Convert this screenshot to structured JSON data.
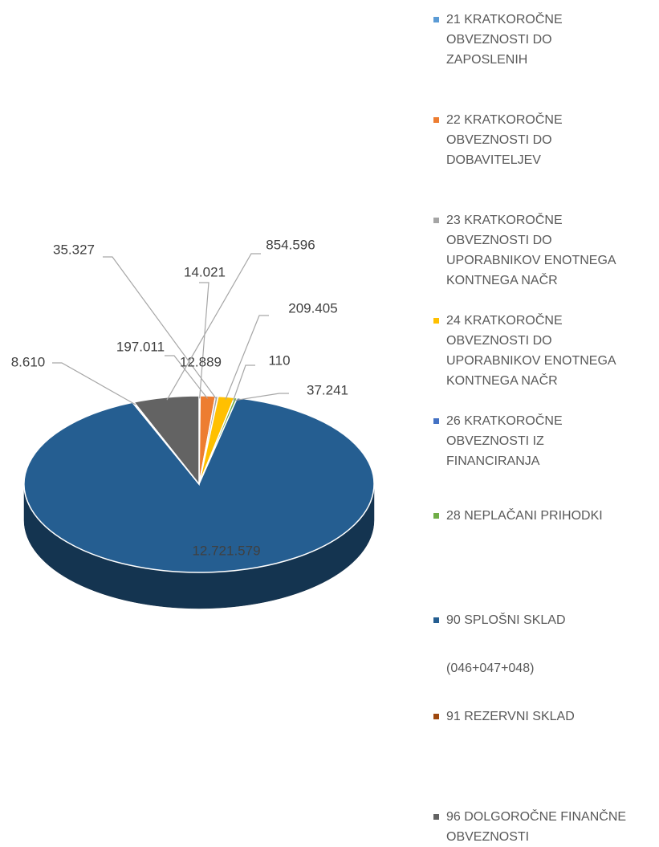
{
  "chart_data": {
    "type": "pie",
    "three_d": true,
    "categories": [
      "21 KRATKOROČNE OBVEZNOSTI DO ZAPOSLENIH",
      "22 KRATKOROČNE OBVEZNOSTI DO DOBAVITELJEV",
      "23 KRATKOROČNE OBVEZNOSTI DO UPORABNIKOV ENOTNEGA KONTNEGA NAČR",
      "24 KRATKOROČNE OBVEZNOSTI DO UPORABNIKOV ENOTNEGA KONTNEGA NAČR",
      "26 KRATKOROČNE OBVEZNOSTI IZ FINANCIRANJA",
      "28 NEPLAČANI PRIHODKI",
      "90 SPLOŠNI SKLAD",
      "(046+047+048)",
      "91 REZERVNI SKLAD",
      "96 DOLGOROČNE FINANČNE OBVEZNOSTI"
    ],
    "values": [
      14021,
      197011,
      35327,
      209405,
      110,
      37241,
      12721579,
      12889,
      8610,
      854596
    ],
    "value_labels": [
      "14.021",
      "197.011",
      "35.327",
      "209.405",
      "110",
      "37.241",
      "12.721.579",
      "12.889",
      "8.610",
      "854.596"
    ],
    "colors": [
      "#5b9bd5",
      "#ed7d31",
      "#a5a5a5",
      "#ffc000",
      "#4472c4",
      "#70ad47",
      "#255e91",
      "#ffffff",
      "#9e480e",
      "#636363"
    ],
    "legend": "right"
  }
}
